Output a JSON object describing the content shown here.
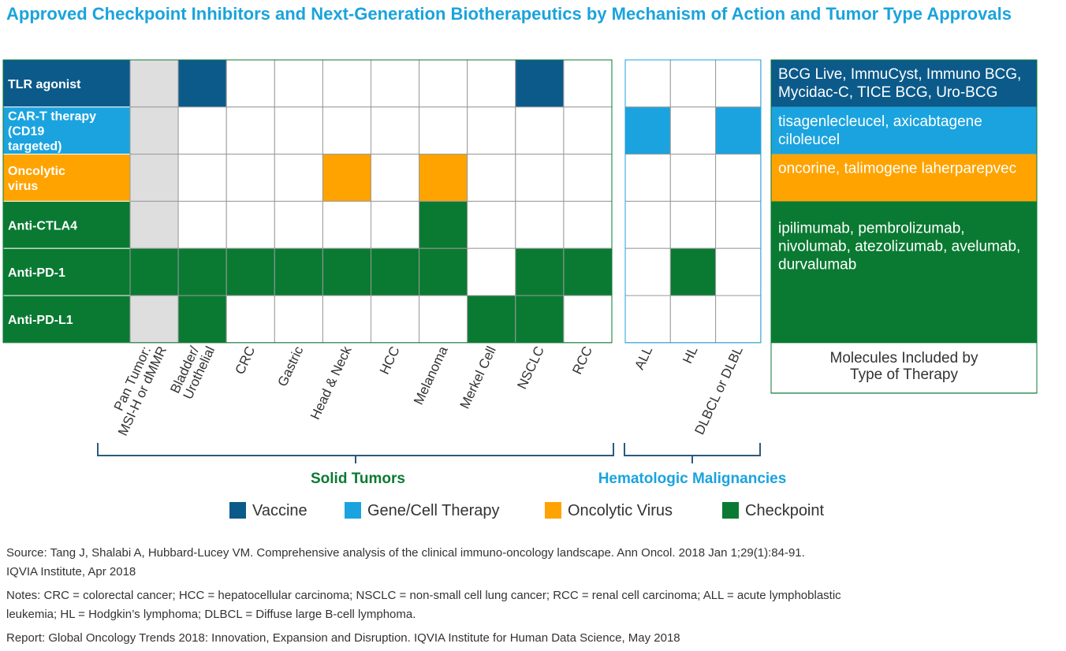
{
  "title": "Approved Checkpoint Inhibitors and Next-Generation Biotherapeutics by Mechanism of Action and Tumor Type Approvals",
  "colors": {
    "vaccine": "#0b5a8a",
    "gene_cell": "#1ba3df",
    "oncolytic": "#ffa300",
    "checkpoint": "#0a7a32",
    "pan_tumor_na": "#dedede",
    "solid_label": "#0a7a32",
    "heme_label": "#1ba3df"
  },
  "chart_data": {
    "type": "heatmap",
    "title": "Approved Checkpoint Inhibitors and Next-Generation Biotherapeutics by Mechanism of Action and Tumor Type Approvals",
    "rows": [
      {
        "label": "TLR agonist",
        "category": "vaccine",
        "molecules": "BCG Live, ImmuCyst, Immuno BCG, Mycidac-C, TICE BCG, Uro-BCG"
      },
      {
        "label": "CAR-T therapy (CD19 targeted)",
        "category": "gene_cell",
        "molecules": "tisagenlecleucel, axicabtagene ciloleucel"
      },
      {
        "label": "Oncolytic virus",
        "category": "oncolytic",
        "molecules": "oncorine, talimogene laherparepvec"
      },
      {
        "label": "Anti-CTLA4",
        "category": "checkpoint"
      },
      {
        "label": "Anti-PD-1",
        "category": "checkpoint"
      },
      {
        "label": "Anti-PD-L1",
        "category": "checkpoint"
      }
    ],
    "checkpoint_molecules": "ipilimumab, pembrolizumab, nivolumab, atezolizumab, avelumab, durvalumab",
    "molecules_header": "Molecules Included by Type of Therapy",
    "solid_tumors": {
      "label": "Solid Tumors",
      "columns": [
        "Pan Tumor: MSI-H or dMMR",
        "Bladder/ Urothelial",
        "CRC",
        "Gastric",
        "Head & Neck",
        "HCC",
        "Melanoma",
        "Merkel Cell",
        "NSCLC",
        "RCC"
      ],
      "approvals": [
        [
          0,
          1,
          0,
          0,
          0,
          0,
          0,
          0,
          1,
          0
        ],
        [
          0,
          0,
          0,
          0,
          0,
          0,
          0,
          0,
          0,
          0
        ],
        [
          0,
          0,
          0,
          0,
          1,
          0,
          1,
          0,
          0,
          0
        ],
        [
          0,
          0,
          0,
          0,
          0,
          0,
          1,
          0,
          0,
          0
        ],
        [
          1,
          1,
          1,
          1,
          1,
          1,
          1,
          0,
          1,
          1
        ],
        [
          0,
          1,
          0,
          0,
          0,
          0,
          0,
          1,
          1,
          0
        ]
      ],
      "pan_tumor_not_approved_shaded": true
    },
    "hematologic": {
      "label": "Hematologic Malignancies",
      "columns": [
        "ALL",
        "HL",
        "DLBCL or DLBL"
      ],
      "approvals": [
        [
          0,
          0,
          0
        ],
        [
          1,
          0,
          1
        ],
        [
          0,
          0,
          0
        ],
        [
          0,
          0,
          0
        ],
        [
          0,
          1,
          0
        ],
        [
          0,
          0,
          0
        ]
      ]
    },
    "legend": [
      {
        "key": "vaccine",
        "label": "Vaccine"
      },
      {
        "key": "gene_cell",
        "label": "Gene/Cell Therapy"
      },
      {
        "key": "oncolytic",
        "label": "Oncolytic Virus"
      },
      {
        "key": "checkpoint",
        "label": "Checkpoint"
      }
    ]
  },
  "footnotes": {
    "source_line1": "Source: Tang J, Shalabi A, Hubbard-Lucey VM. Comprehensive analysis of the clinical immuno-oncology landscape. Ann Oncol. 2018 Jan 1;29(1):84-91.",
    "source_line2": "IQVIA Institute, Apr 2018",
    "notes_line1": "Notes: CRC = colorectal cancer; HCC = hepatocellular carcinoma; NSCLC = non-small cell lung cancer; RCC = renal cell carcinoma; ALL = acute lymphoblastic",
    "notes_line2": "leukemia; HL = Hodgkin’s lymphoma; DLBCL = Diffuse large B-cell lymphoma.",
    "report": "Report: Global Oncology Trends 2018: Innovation, Expansion and Disruption. IQVIA Institute for Human Data Science, May 2018"
  }
}
